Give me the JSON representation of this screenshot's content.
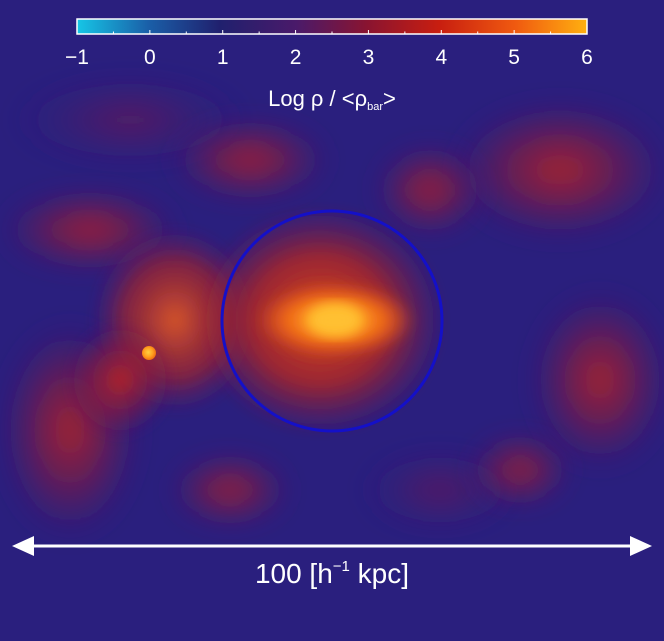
{
  "colorbar": {
    "ticks": [
      "−1",
      "0",
      "1",
      "2",
      "3",
      "4",
      "5",
      "6"
    ],
    "label_prefix": "Log ρ / <ρ",
    "label_subscript": "bar",
    "label_suffix": ">",
    "colors": [
      "#16c6e6",
      "#1a5fa8",
      "#20206e",
      "#4a1a6a",
      "#8a1430",
      "#c81e10",
      "#f05a10",
      "#ffb010"
    ]
  },
  "scale_bar": {
    "value": "100 [h",
    "exponent": "−1",
    "unit": " kpc]"
  },
  "colors": {
    "background": "#2a1f7e",
    "annotation": "#ffffff",
    "circle": "#1410c8"
  },
  "features": [
    "density-map",
    "virial-radius-circle",
    "satellite-clump",
    "colorbar",
    "scale-bar"
  ]
}
